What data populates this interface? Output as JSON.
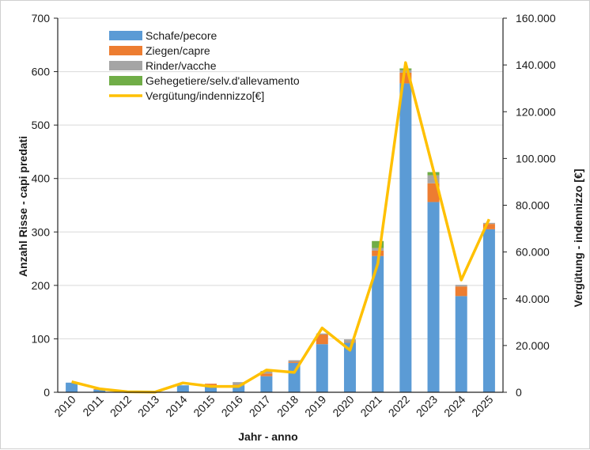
{
  "chart_data": {
    "type": "bar",
    "stacked": true,
    "categories": [
      "2010",
      "2011",
      "2012",
      "2013",
      "2014",
      "2015",
      "2016",
      "2017",
      "2018",
      "2019",
      "2020",
      "2021",
      "2022",
      "2023",
      "2024",
      "2025"
    ],
    "series": [
      {
        "name": "Schafe/pecore",
        "color": "#5b9bd5",
        "values": [
          18,
          5,
          0,
          0,
          13,
          12,
          13,
          30,
          55,
          90,
          93,
          255,
          578,
          356,
          180,
          305
        ]
      },
      {
        "name": "Ziegen/capre",
        "color": "#ed7d31",
        "values": [
          0,
          1,
          0,
          0,
          0,
          4,
          1,
          5,
          2,
          18,
          1,
          10,
          20,
          35,
          18,
          10
        ]
      },
      {
        "name": "Rinder/vacche",
        "color": "#a5a5a5",
        "values": [
          0,
          0,
          0,
          0,
          0,
          0,
          5,
          5,
          3,
          2,
          5,
          5,
          5,
          15,
          3,
          2
        ]
      },
      {
        "name": "Gehegetiere/selv.d'allevamento",
        "color": "#70ad47",
        "values": [
          0,
          0,
          0,
          0,
          0,
          0,
          0,
          0,
          0,
          0,
          0,
          13,
          3,
          6,
          0,
          0
        ]
      }
    ],
    "line": {
      "name": "Vergütung/indennizzo[€]",
      "color": "#ffc000",
      "values": [
        4500,
        1500,
        200,
        100,
        4000,
        2500,
        2500,
        9500,
        8500,
        27500,
        18000,
        55000,
        141000,
        95000,
        48000,
        74000
      ]
    },
    "xlabel": "Jahr - anno",
    "ylabel": "Anzahl Risse - capi predati",
    "y2label": "Vergütung - indennizzo [€]",
    "ylim": [
      0,
      700
    ],
    "yticks": [
      "0",
      "100",
      "200",
      "300",
      "400",
      "500",
      "600",
      "700"
    ],
    "y2lim": [
      0,
      160000
    ],
    "y2ticks": [
      "0",
      "20.000",
      "40.000",
      "60.000",
      "80.000",
      "100.000",
      "120.000",
      "140.000",
      "160.000"
    ],
    "grid": true,
    "legend_position": "top-left"
  }
}
